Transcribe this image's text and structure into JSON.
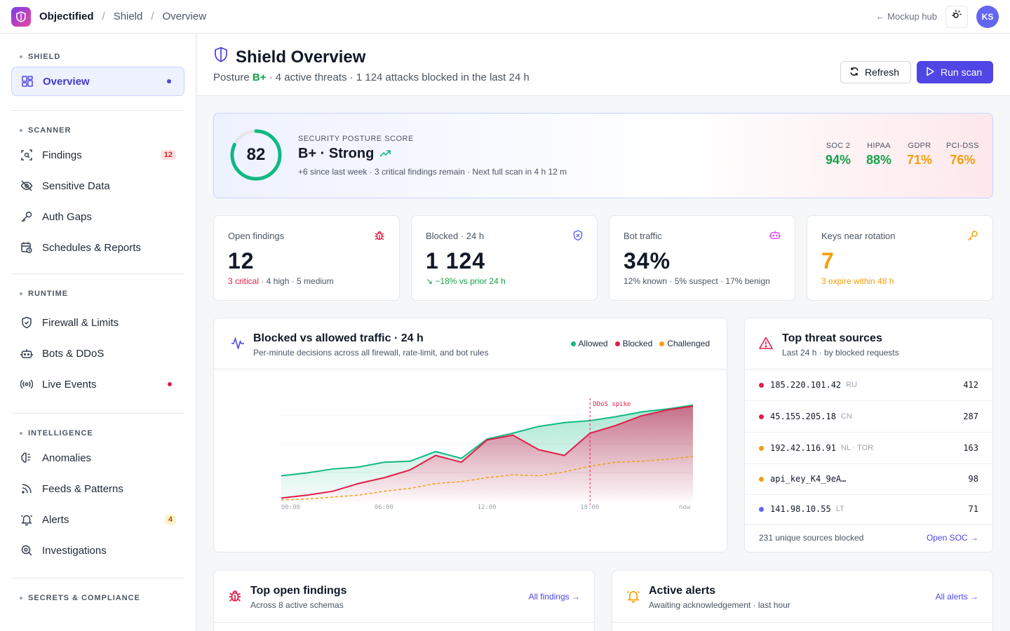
{
  "topbar": {
    "app_name": "Objectified",
    "crumbs": [
      "Shield",
      "Overview"
    ],
    "separator": "/",
    "hub_link": "← Mockup hub",
    "avatar_initials": "KS"
  },
  "sidebar": {
    "sections": [
      {
        "title": "SHIELD",
        "items": [
          {
            "label": "Overview",
            "icon": "layout-grid-icon",
            "active": true
          }
        ]
      },
      {
        "title": "SCANNER",
        "items": [
          {
            "label": "Findings",
            "icon": "scan-icon",
            "badge": "12"
          },
          {
            "label": "Sensitive Data",
            "icon": "eye-off-icon"
          },
          {
            "label": "Auth Gaps",
            "icon": "key-icon"
          },
          {
            "label": "Schedules & Reports",
            "icon": "calendar-clock-icon"
          }
        ]
      },
      {
        "title": "RUNTIME",
        "items": [
          {
            "label": "Firewall & Limits",
            "icon": "shield-check-icon"
          },
          {
            "label": "Bots & DDoS",
            "icon": "bot-icon"
          },
          {
            "label": "Live Events",
            "icon": "radio-icon"
          }
        ]
      },
      {
        "title": "INTELLIGENCE",
        "items": [
          {
            "label": "Anomalies",
            "icon": "brain-icon"
          },
          {
            "label": "Feeds & Patterns",
            "icon": "rss-icon"
          },
          {
            "label": "Alerts",
            "icon": "bell-icon",
            "badge": "4"
          },
          {
            "label": "Investigations",
            "icon": "search-zoom-icon"
          }
        ]
      },
      {
        "title": "SECRETS & COMPLIANCE",
        "items": []
      }
    ]
  },
  "header": {
    "title": "Shield Overview",
    "subtitle_prefix": "Posture ",
    "grade": "B+",
    "subtitle_rest": " · 4 active threats · 1 124 attacks blocked in the last 24 h",
    "refresh_label": "Refresh",
    "run_scan_label": "Run scan"
  },
  "posture": {
    "score": "82",
    "score_value": 82,
    "label": "SECURITY POSTURE SCORE",
    "grade_text": "B+ · Strong",
    "note": "+6 since last week · 3 critical findings remain · Next full scan in 4 h 12 m",
    "compliance": [
      {
        "name": "SOC 2",
        "value": "94%",
        "color": "#16a34a"
      },
      {
        "name": "HIPAA",
        "value": "88%",
        "color": "#16a34a"
      },
      {
        "name": "GDPR",
        "value": "71%",
        "color": "#f59e0b"
      },
      {
        "name": "PCI-DSS",
        "value": "76%",
        "color": "#f59e0b"
      }
    ]
  },
  "kpis": [
    {
      "label": "Open findings",
      "value": "12",
      "note_hl": "3 critical",
      "note_rest": " · 4 high · 5 medium",
      "icon": "bug-icon"
    },
    {
      "label": "Blocked · 24 h",
      "value": "1 124",
      "note_hl": "↘ −18% vs prior 24 h",
      "note_rest": "",
      "icon": "shield-x-icon"
    },
    {
      "label": "Bot traffic",
      "value": "34%",
      "note_hl": "",
      "note_rest": "12% known · 5% suspect · 17% benign",
      "icon": "bot-icon"
    },
    {
      "label": "Keys near rotation",
      "value": "7",
      "note_hl": "3 expire within 48 h",
      "note_rest": "",
      "icon": "key-icon"
    }
  ],
  "traffic": {
    "title": "Blocked vs allowed traffic · 24 h",
    "subtitle": "Per-minute decisions across all firewall, rate-limit, and bot rules",
    "legend": [
      "Allowed",
      "Blocked",
      "Challenged"
    ],
    "annotation": "DDoS spike"
  },
  "chart_data": {
    "type": "area",
    "x": [
      "00:00",
      "01:30",
      "03:00",
      "04:30",
      "06:00",
      "07:30",
      "09:00",
      "10:30",
      "12:00",
      "13:30",
      "15:00",
      "16:30",
      "18:00",
      "19:30",
      "21:00",
      "22:30",
      "24:00"
    ],
    "x_tick_labels": [
      "00:00",
      "06:00",
      "12:00",
      "18:00",
      "now"
    ],
    "series": [
      {
        "name": "Allowed",
        "color": "#10b981",
        "values": [
          0.3,
          0.33,
          0.37,
          0.39,
          0.44,
          0.45,
          0.55,
          0.48,
          0.68,
          0.74,
          0.81,
          0.85,
          0.87,
          0.91,
          0.96,
          0.99,
          1.03
        ]
      },
      {
        "name": "Blocked",
        "color": "#e11d48",
        "values": [
          0.07,
          0.1,
          0.14,
          0.22,
          0.28,
          0.36,
          0.51,
          0.44,
          0.67,
          0.72,
          0.57,
          0.51,
          0.74,
          0.82,
          0.92,
          0.98,
          1.02
        ]
      },
      {
        "name": "Challenged",
        "color": "#f59e0b",
        "values": [
          0.05,
          0.06,
          0.08,
          0.1,
          0.14,
          0.17,
          0.22,
          0.24,
          0.28,
          0.31,
          0.3,
          0.34,
          0.4,
          0.44,
          0.45,
          0.47,
          0.5
        ]
      }
    ],
    "annotation": {
      "x": "18:00",
      "label": "DDoS spike"
    }
  },
  "threats": {
    "title": "Top threat sources",
    "subtitle": "Last 24 h · by blocked requests",
    "rows": [
      {
        "ip": "185.220.101.42",
        "tag": "RU",
        "count": "412",
        "color": "#e11d48"
      },
      {
        "ip": "45.155.205.18",
        "tag": "CN",
        "count": "287",
        "color": "#e11d48"
      },
      {
        "ip": "192.42.116.91",
        "tag": "NL · TOR",
        "count": "163",
        "color": "#f59e0b"
      },
      {
        "ip": "api_key_K4_9eA…",
        "tag": "",
        "count": "98",
        "color": "#f59e0b"
      },
      {
        "ip": "141.98.10.55",
        "tag": "LT",
        "count": "71",
        "color": "#6366f1"
      }
    ],
    "footer": "231 unique sources blocked",
    "link": "Open SOC →"
  },
  "findings_panel": {
    "title": "Top open findings",
    "subtitle": "Across 8 active schemas",
    "link": "All findings →"
  },
  "alerts_panel": {
    "title": "Active alerts",
    "subtitle": "Awaiting acknowledgement · last hour",
    "link": "All alerts →"
  }
}
